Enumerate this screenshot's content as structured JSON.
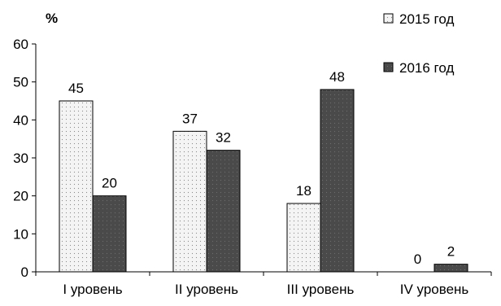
{
  "chart_data": {
    "type": "bar",
    "unit_label": "%",
    "categories": [
      "I уровень",
      "II уровень",
      "III уровень",
      "IV уровень"
    ],
    "series": [
      {
        "name": "2015 год",
        "values": [
          45,
          37,
          18,
          0
        ],
        "color": "#f4f4f4",
        "pattern": "dotted"
      },
      {
        "name": "2016 год",
        "values": [
          20,
          32,
          48,
          2
        ],
        "color": "#4a4a4a",
        "pattern": "dark-dotted"
      }
    ],
    "ylim": [
      0,
      60
    ],
    "yticks": [
      0,
      10,
      20,
      30,
      40,
      50,
      60
    ],
    "ytick_labels": [
      "0",
      "10",
      "20",
      "30",
      "40",
      "50",
      "60"
    ],
    "data_labels": [
      [
        "45",
        "37",
        "18",
        "0"
      ],
      [
        "20",
        "32",
        "48",
        "2"
      ]
    ],
    "legend_position": "top-right",
    "grid": false
  }
}
